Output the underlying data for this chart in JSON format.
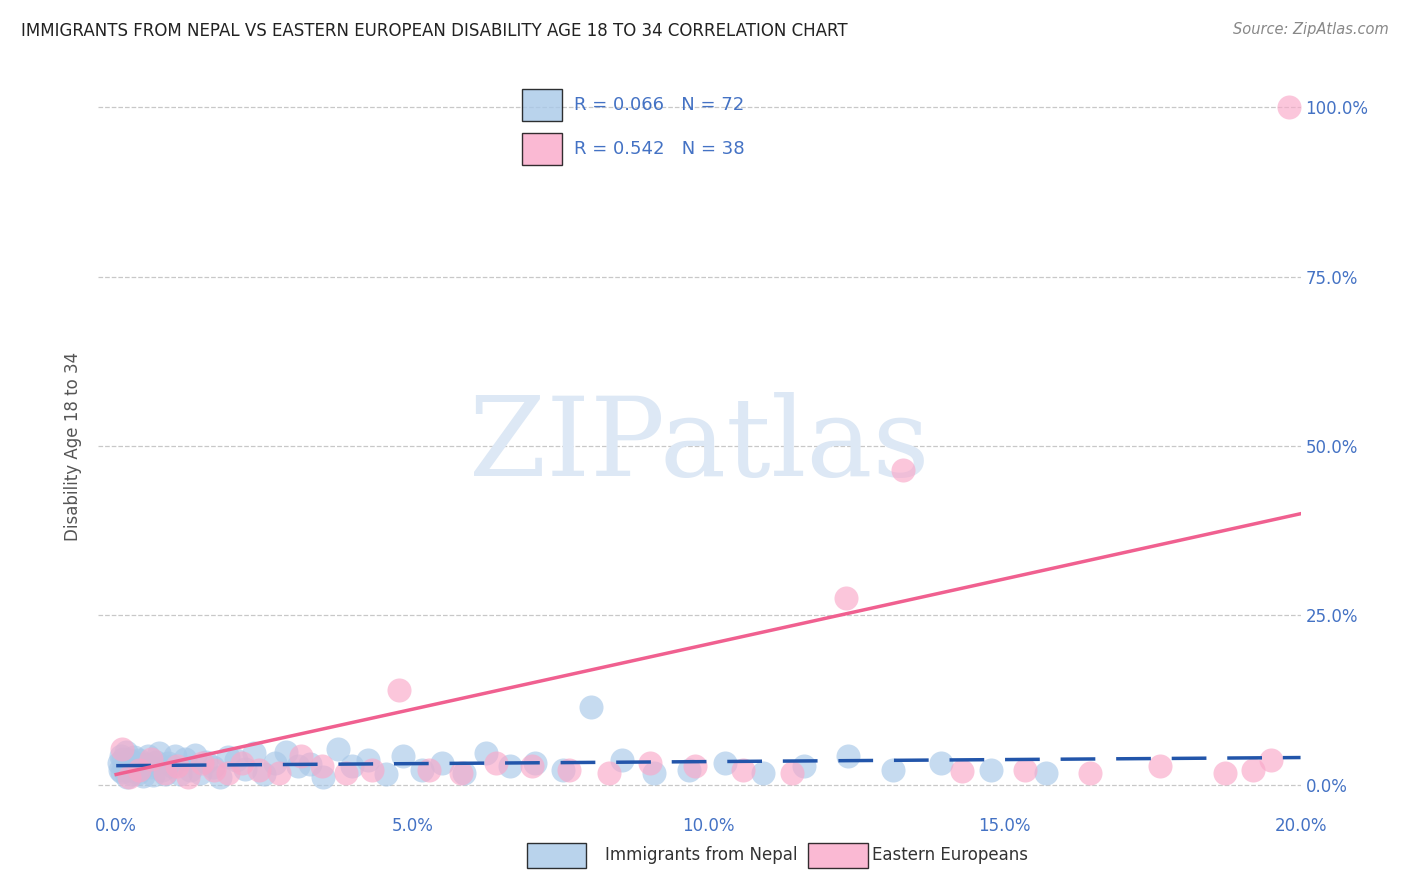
{
  "title": "IMMIGRANTS FROM NEPAL VS EASTERN EUROPEAN DISABILITY AGE 18 TO 34 CORRELATION CHART",
  "source": "Source: ZipAtlas.com",
  "ylabel": "Disability Age 18 to 34",
  "xlim": [
    -0.3,
    20.0
  ],
  "ylim": [
    -4.0,
    104.0
  ],
  "yticks": [
    0.0,
    25.0,
    50.0,
    75.0,
    100.0
  ],
  "xticks": [
    0.0,
    5.0,
    10.0,
    15.0,
    20.0
  ],
  "legend_label_1": "Immigrants from Nepal",
  "legend_label_2": "Eastern Europeans",
  "R1": 0.066,
  "N1": 72,
  "R2": 0.542,
  "N2": 38,
  "color1": "#a8c8e8",
  "color2": "#f9a8c9",
  "line_color1": "#2255aa",
  "line_color2": "#f06090",
  "title_color": "#222222",
  "axis_color": "#4472c4",
  "watermark_color": "#dde8f5",
  "nepal_x": [
    0.04,
    0.06,
    0.08,
    0.1,
    0.12,
    0.14,
    0.16,
    0.18,
    0.2,
    0.22,
    0.24,
    0.26,
    0.28,
    0.3,
    0.33,
    0.36,
    0.39,
    0.42,
    0.46,
    0.5,
    0.54,
    0.58,
    0.62,
    0.67,
    0.72,
    0.77,
    0.82,
    0.88,
    0.94,
    1.0,
    1.08,
    1.16,
    1.24,
    1.33,
    1.42,
    1.52,
    1.63,
    1.75,
    1.88,
    2.02,
    2.17,
    2.33,
    2.5,
    2.68,
    2.87,
    3.07,
    3.28,
    3.5,
    3.74,
    3.99,
    4.26,
    4.55,
    4.85,
    5.17,
    5.51,
    5.87,
    6.25,
    6.65,
    7.08,
    7.54,
    8.02,
    8.54,
    9.09,
    9.67,
    10.28,
    10.93,
    11.62,
    12.35,
    13.12,
    13.93,
    14.78,
    15.7
  ],
  "nepal_y": [
    3.2,
    2.1,
    4.2,
    1.8,
    3.8,
    2.5,
    4.8,
    1.2,
    2.8,
    3.6,
    2.2,
    1.6,
    3.3,
    4.1,
    2.7,
    1.7,
    3.7,
    2.3,
    1.3,
    3.1,
    4.3,
    2.6,
    1.4,
    3.4,
    4.6,
    2.1,
    1.5,
    3.2,
    2.7,
    4.2,
    1.6,
    3.8,
    2.2,
    4.4,
    1.7,
    3.3,
    2.6,
    1.1,
    4.1,
    3.7,
    2.3,
    4.7,
    1.6,
    3.2,
    4.8,
    2.7,
    3.1,
    1.2,
    5.2,
    2.7,
    3.7,
    1.6,
    4.2,
    2.2,
    3.2,
    1.7,
    4.7,
    2.7,
    3.2,
    2.2,
    11.5,
    3.7,
    1.7,
    2.2,
    3.2,
    1.7,
    2.7,
    4.2,
    2.2,
    3.2,
    2.2,
    1.7
  ],
  "eastern_x": [
    0.1,
    0.22,
    0.38,
    0.58,
    0.82,
    1.02,
    1.22,
    1.45,
    1.65,
    1.88,
    2.12,
    2.42,
    2.75,
    3.12,
    3.48,
    3.88,
    4.32,
    4.78,
    5.28,
    5.82,
    6.42,
    7.02,
    7.65,
    8.32,
    9.02,
    9.78,
    10.58,
    11.42,
    12.32,
    13.28,
    14.28,
    15.35,
    16.45,
    17.62,
    18.72,
    19.2,
    19.5,
    19.8
  ],
  "eastern_y": [
    5.2,
    1.2,
    2.2,
    3.8,
    1.7,
    2.7,
    1.2,
    3.2,
    2.2,
    1.7,
    3.2,
    2.2,
    1.7,
    4.2,
    2.7,
    1.7,
    2.2,
    14.0,
    2.2,
    1.7,
    3.2,
    2.7,
    2.2,
    1.7,
    3.2,
    2.7,
    2.2,
    1.7,
    27.5,
    46.5,
    2.0,
    2.2,
    1.7,
    2.7,
    1.7,
    2.2,
    3.7,
    100.0
  ],
  "nepal_line_x0": 0.0,
  "nepal_line_x1": 20.0,
  "nepal_line_y0": 2.8,
  "nepal_line_y1": 4.0,
  "eastern_line_x0": 0.0,
  "eastern_line_x1": 20.0,
  "eastern_line_y0": 1.5,
  "eastern_line_y1": 40.0
}
